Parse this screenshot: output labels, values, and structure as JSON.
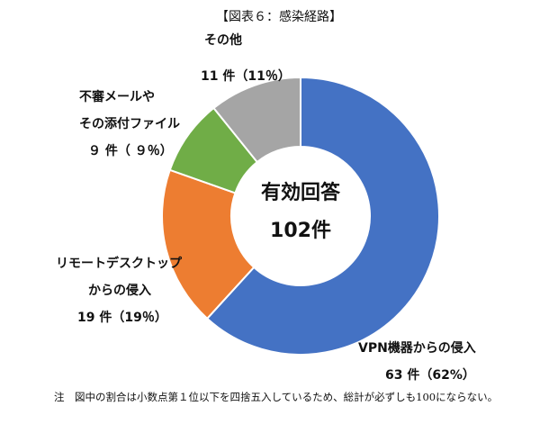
{
  "chart_data": {
    "type": "pie",
    "title": "【図表６：感染経路】",
    "center_label": {
      "line1": "有効回答",
      "line2": "102件"
    },
    "slices": [
      {
        "name": "VPN機器からの侵入",
        "count_label": "63件（62％）",
        "value": 63,
        "percent": 62,
        "color": "#4472C4"
      },
      {
        "name": "リモートデスクトップからの侵入",
        "count_label": "19件（19％）",
        "value": 19,
        "percent": 19,
        "color": "#ED7D31"
      },
      {
        "name": "不審メールやその添付ファイル",
        "count_label": "9件（9％）",
        "value": 9,
        "percent": 9,
        "color": "#70AD47"
      },
      {
        "name": "その他",
        "count_label": "11件（11％）",
        "value": 11,
        "percent": 11,
        "color": "#A5A5A5"
      }
    ],
    "labels": {
      "vpn": {
        "line1": "VPN機器からの侵入",
        "line2": "63 件（62%）"
      },
      "rdp": {
        "line1": "リモートデスクトップ",
        "line2": "からの侵入",
        "line3": "19 件（19％）"
      },
      "mail": {
        "line1": "不審メールや",
        "line2": "その添付ファイル",
        "line3": "９ 件（ ９％）"
      },
      "other": {
        "line1": "その他",
        "line2": "11 件（11％）"
      }
    },
    "note": "注　図中の割合は小数点第１位以下を四捨五入しているため、総計が必ずしも100にならない。"
  }
}
